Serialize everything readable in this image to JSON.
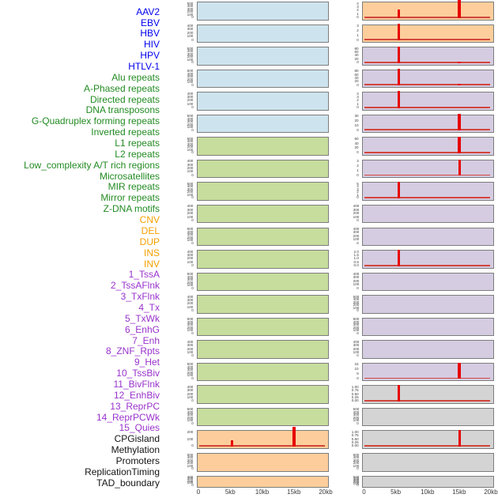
{
  "chart_data": {
    "type": "bar",
    "title": "",
    "description": "Small-multiple tracks: 44 genomic features over a 0-20kb window, two panel columns filled column-major; red bars mark feature signal positions",
    "x_axis": {
      "unit": "kb",
      "range": [
        0,
        20
      ],
      "tick_kb": [
        0,
        5,
        10,
        15,
        20
      ],
      "tick_labels": [
        "0",
        "5kb",
        "10kb",
        "15kb",
        "20kb"
      ],
      "shown_under_columns": [
        "left",
        "right"
      ]
    },
    "grid": "off",
    "legend": "none",
    "signal_color": "#e60000",
    "baseline_color": "#d2453c",
    "panel_border_color": "#7d7d7d",
    "tick_text_color": "#3c3c3c",
    "group_colors": {
      "virus": {
        "label": "#0000ee",
        "panel": "#cde4ee"
      },
      "repeats": {
        "label": "#228b22",
        "panel": "#c7dd9d"
      },
      "sv": {
        "label": "#f4a000",
        "panel": "#fdce9b"
      },
      "chromatin_state": {
        "label": "#9933cc",
        "panel": "#d5cce1"
      },
      "other": {
        "label": "#141414",
        "panel": "#d4d4d4"
      }
    },
    "features": [
      {
        "label": "AAV2",
        "group": "virus",
        "column": "left",
        "row": 1,
        "y_ticks": [
          "500",
          "400",
          "300",
          "200",
          "100",
          "0"
        ],
        "baseline": false,
        "spikes": []
      },
      {
        "label": "EBV",
        "group": "virus",
        "column": "left",
        "row": 2,
        "y_ticks": [
          "400",
          "300",
          "200",
          "100",
          "0"
        ],
        "baseline": false,
        "spikes": []
      },
      {
        "label": "HBV",
        "group": "virus",
        "column": "left",
        "row": 3,
        "y_ticks": [
          "500",
          "400",
          "300",
          "200",
          "100",
          "0"
        ],
        "baseline": false,
        "spikes": []
      },
      {
        "label": "HIV",
        "group": "virus",
        "column": "left",
        "row": 4,
        "y_ticks": [
          "500",
          "400",
          "300",
          "200",
          "100",
          "0"
        ],
        "baseline": false,
        "spikes": []
      },
      {
        "label": "HPV",
        "group": "virus",
        "column": "left",
        "row": 5,
        "y_ticks": [
          "400",
          "300",
          "200",
          "100",
          "0"
        ],
        "baseline": false,
        "spikes": []
      },
      {
        "label": "HTLV-1",
        "group": "virus",
        "column": "left",
        "row": 6,
        "y_ticks": [
          "500",
          "400",
          "300",
          "200",
          "100",
          "0"
        ],
        "baseline": false,
        "spikes": []
      },
      {
        "label": "Alu repeats",
        "group": "repeats",
        "column": "left",
        "row": 7,
        "y_ticks": [
          "500",
          "400",
          "300",
          "200",
          "100",
          "0"
        ],
        "baseline": false,
        "spikes": []
      },
      {
        "label": "A-Phased repeats",
        "group": "repeats",
        "column": "left",
        "row": 8,
        "y_ticks": [
          "400",
          "300",
          "200",
          "100",
          "0"
        ],
        "baseline": false,
        "spikes": []
      },
      {
        "label": "Directed repeats",
        "group": "repeats",
        "column": "left",
        "row": 9,
        "y_ticks": [
          "500",
          "400",
          "300",
          "200",
          "100",
          "0"
        ],
        "baseline": false,
        "spikes": []
      },
      {
        "label": "DNA transposons",
        "group": "repeats",
        "column": "left",
        "row": 10,
        "y_ticks": [
          "400",
          "300",
          "200",
          "100",
          "0"
        ],
        "baseline": false,
        "spikes": []
      },
      {
        "label": "G-Quadruplex forming repeats",
        "group": "repeats",
        "column": "left",
        "row": 11,
        "y_ticks": [
          "500",
          "400",
          "300",
          "200",
          "100",
          "0"
        ],
        "baseline": false,
        "spikes": []
      },
      {
        "label": "Inverted repeats",
        "group": "repeats",
        "column": "left",
        "row": 12,
        "y_ticks": [
          "400",
          "300",
          "200",
          "100",
          "0"
        ],
        "baseline": false,
        "spikes": []
      },
      {
        "label": "L1 repeats",
        "group": "repeats",
        "column": "left",
        "row": 13,
        "y_ticks": [
          "500",
          "400",
          "300",
          "200",
          "100",
          "0"
        ],
        "baseline": false,
        "spikes": []
      },
      {
        "label": "L2 repeats",
        "group": "repeats",
        "column": "left",
        "row": 14,
        "y_ticks": [
          "400",
          "300",
          "200",
          "100",
          "0"
        ],
        "baseline": false,
        "spikes": []
      },
      {
        "label": "Low_complexity A/T rich regions",
        "group": "repeats",
        "column": "left",
        "row": 15,
        "y_ticks": [
          "500",
          "400",
          "300",
          "200",
          "100",
          "0"
        ],
        "baseline": false,
        "spikes": []
      },
      {
        "label": "Microsatellites",
        "group": "repeats",
        "column": "left",
        "row": 16,
        "y_ticks": [
          "400",
          "300",
          "200",
          "100",
          "0"
        ],
        "baseline": false,
        "spikes": []
      },
      {
        "label": "MIR repeats",
        "group": "repeats",
        "column": "left",
        "row": 17,
        "y_ticks": [
          "500",
          "400",
          "300",
          "200",
          "100",
          "0"
        ],
        "baseline": false,
        "spikes": []
      },
      {
        "label": "Mirror repeats",
        "group": "repeats",
        "column": "left",
        "row": 18,
        "y_ticks": [
          "400",
          "300",
          "200",
          "100",
          "0"
        ],
        "baseline": false,
        "spikes": []
      },
      {
        "label": "Z-DNA motifs",
        "group": "repeats",
        "column": "left",
        "row": 19,
        "y_ticks": [
          "500",
          "400",
          "300",
          "200",
          "100",
          "0"
        ],
        "baseline": false,
        "spikes": []
      },
      {
        "label": "CNV",
        "group": "sv",
        "column": "left",
        "row": 20,
        "y_ticks": [
          "200",
          "100",
          "0"
        ],
        "baseline": true,
        "spikes": [
          {
            "x_kb": 5.2,
            "value": 120,
            "clipped": false,
            "frac": 0.45,
            "w": 3
          },
          {
            "x_kb": 14.9,
            "value": 300,
            "clipped": true,
            "frac": 1.35,
            "w": 3.5
          }
        ]
      },
      {
        "label": "DEL",
        "group": "sv",
        "column": "left",
        "row": 21,
        "y_ticks": [
          "500",
          "400",
          "300",
          "200",
          "100",
          "0"
        ],
        "baseline": false,
        "spikes": []
      },
      {
        "label": "DUP",
        "group": "sv",
        "column": "left",
        "row": 22,
        "y_ticks": [
          "400",
          "300",
          "200",
          "100",
          "0"
        ],
        "baseline": false,
        "spikes": []
      },
      {
        "label": "INS",
        "group": "sv",
        "column": "right",
        "row": 1,
        "y_ticks": [
          "4",
          "3",
          "2",
          "1",
          "0"
        ],
        "baseline": true,
        "spikes": [
          {
            "x_kb": 5.3,
            "value": 2.3,
            "clipped": false,
            "frac": 0.57,
            "w": 3
          },
          {
            "x_kb": 14.9,
            "value": 4.6,
            "clipped": true,
            "frac": 1.35,
            "w": 4.5
          }
        ]
      },
      {
        "label": "INV",
        "group": "sv",
        "column": "right",
        "row": 2,
        "y_ticks": [
          "3",
          "2",
          "1",
          "0"
        ],
        "baseline": true,
        "spikes": [
          {
            "x_kb": 5.3,
            "value": 3.2,
            "clipped": false,
            "frac": 1.12,
            "w": 3
          }
        ]
      },
      {
        "label": "1_TssA",
        "group": "chromatin_state",
        "column": "right",
        "row": 3,
        "y_ticks": [
          "80",
          "60",
          "40",
          "20",
          "0"
        ],
        "baseline": true,
        "spikes": [
          {
            "x_kb": 5.3,
            "value": 85,
            "clipped": false,
            "frac": 1.12,
            "w": 3
          },
          {
            "x_kb": 14.9,
            "value": 5,
            "clipped": false,
            "frac": 0.09,
            "w": 4
          }
        ]
      },
      {
        "label": "2_TssAFlnk",
        "group": "chromatin_state",
        "column": "right",
        "row": 4,
        "y_ticks": [
          "80",
          "60",
          "40",
          "20",
          "0"
        ],
        "baseline": true,
        "spikes": [
          {
            "x_kb": 5.3,
            "value": 85,
            "clipped": false,
            "frac": 1.12,
            "w": 3
          },
          {
            "x_kb": 14.9,
            "value": 10,
            "clipped": false,
            "frac": 0.14,
            "w": 4.5
          }
        ]
      },
      {
        "label": "3_TxFlnk",
        "group": "chromatin_state",
        "column": "right",
        "row": 5,
        "y_ticks": [
          "4",
          "3",
          "2",
          "1",
          "0"
        ],
        "baseline": true,
        "spikes": [
          {
            "x_kb": 5.3,
            "value": 4.3,
            "clipped": false,
            "frac": 1.15,
            "w": 3
          }
        ]
      },
      {
        "label": "4_Tx",
        "group": "chromatin_state",
        "column": "right",
        "row": 6,
        "y_ticks": [
          "30",
          "20",
          "10",
          "0"
        ],
        "baseline": true,
        "spikes": [
          {
            "x_kb": 14.9,
            "value": 32,
            "clipped": false,
            "frac": 1.15,
            "w": 3.5
          }
        ]
      },
      {
        "label": "5_TxWk",
        "group": "chromatin_state",
        "column": "right",
        "row": 7,
        "y_ticks": [
          "60",
          "40",
          "20",
          "0"
        ],
        "baseline": true,
        "spikes": [
          {
            "x_kb": 14.9,
            "value": 65,
            "clipped": false,
            "frac": 1.12,
            "w": 3.5
          }
        ]
      },
      {
        "label": "6_EnhG",
        "group": "chromatin_state",
        "column": "right",
        "row": 8,
        "y_ticks": [
          "3",
          "2",
          "1",
          "0"
        ],
        "baseline": true,
        "spikes": [
          {
            "x_kb": 14.9,
            "value": 3.1,
            "clipped": false,
            "frac": 1.12,
            "w": 3
          }
        ]
      },
      {
        "label": "7_Enh",
        "group": "chromatin_state",
        "column": "right",
        "row": 9,
        "y_ticks": [
          "5",
          "4",
          "3",
          "2",
          "1",
          "0"
        ],
        "baseline": true,
        "spikes": [
          {
            "x_kb": 5.3,
            "value": 5.2,
            "clipped": false,
            "frac": 1.12,
            "w": 3
          }
        ]
      },
      {
        "label": "8_ZNF_Rpts",
        "group": "chromatin_state",
        "column": "right",
        "row": 10,
        "y_ticks": [
          "400",
          "300",
          "200",
          "100",
          "0"
        ],
        "baseline": false,
        "spikes": []
      },
      {
        "label": "9_Het",
        "group": "chromatin_state",
        "column": "right",
        "row": 11,
        "y_ticks": [
          "400",
          "300",
          "200",
          "100",
          "0"
        ],
        "baseline": false,
        "spikes": []
      },
      {
        "label": "10_TssBiv",
        "group": "chromatin_state",
        "column": "right",
        "row": 12,
        "y_ticks": [
          "2.0",
          "1.5",
          "1.0",
          "0.5",
          "0.0"
        ],
        "baseline": true,
        "spikes": [
          {
            "x_kb": 5.3,
            "value": 2.1,
            "clipped": false,
            "frac": 1.12,
            "w": 3
          }
        ]
      },
      {
        "label": "11_BivFlnk",
        "group": "chromatin_state",
        "column": "right",
        "row": 13,
        "y_ticks": [
          "400",
          "300",
          "200",
          "100",
          "0"
        ],
        "baseline": false,
        "spikes": []
      },
      {
        "label": "12_EnhBiv",
        "group": "chromatin_state",
        "column": "right",
        "row": 14,
        "y_ticks": [
          "500",
          "400",
          "300",
          "200",
          "100",
          "0"
        ],
        "baseline": false,
        "spikes": []
      },
      {
        "label": "13_ReprPC",
        "group": "chromatin_state",
        "column": "right",
        "row": 15,
        "y_ticks": [
          "500",
          "400",
          "300",
          "200",
          "100",
          "0"
        ],
        "baseline": false,
        "spikes": []
      },
      {
        "label": "14_ReprPCWk",
        "group": "chromatin_state",
        "column": "right",
        "row": 16,
        "y_ticks": [
          "400",
          "300",
          "200",
          "100",
          "0"
        ],
        "baseline": false,
        "spikes": []
      },
      {
        "label": "15_Quies",
        "group": "chromatin_state",
        "column": "right",
        "row": 17,
        "y_ticks": [
          "15",
          "10",
          "5",
          "0"
        ],
        "baseline": true,
        "spikes": [
          {
            "x_kb": 14.9,
            "value": 15.5,
            "clipped": false,
            "frac": 1.12,
            "w": 3.5
          }
        ]
      },
      {
        "label": "CPGisland",
        "group": "other",
        "column": "right",
        "row": 18,
        "y_ticks": [
          "1.00",
          "0.75",
          "0.50",
          "0.25",
          "0.00"
        ],
        "baseline": true,
        "spikes": [
          {
            "x_kb": 5.3,
            "value": 1.0,
            "clipped": false,
            "frac": 1.12,
            "w": 3
          }
        ]
      },
      {
        "label": "Methylation",
        "group": "other",
        "column": "right",
        "row": 19,
        "y_ticks": [
          "500",
          "400",
          "300",
          "200",
          "100",
          "0"
        ],
        "baseline": false,
        "spikes": []
      },
      {
        "label": "Promoters",
        "group": "other",
        "column": "right",
        "row": 20,
        "y_ticks": [
          "1.00",
          "0.75",
          "0.50",
          "0.25",
          "0.00"
        ],
        "baseline": true,
        "spikes": [
          {
            "x_kb": 14.9,
            "value": 1.0,
            "clipped": false,
            "frac": 1.12,
            "w": 3
          }
        ]
      },
      {
        "label": "ReplicationTiming",
        "group": "other",
        "column": "right",
        "row": 21,
        "y_ticks": [
          "500",
          "400",
          "300",
          "200",
          "100",
          "0"
        ],
        "baseline": false,
        "spikes": []
      },
      {
        "label": "TAD_boundary",
        "group": "other",
        "column": "right",
        "row": 22,
        "y_ticks": [
          "500",
          "400",
          "300",
          "200",
          "100",
          "0"
        ],
        "baseline": false,
        "spikes": []
      }
    ]
  }
}
